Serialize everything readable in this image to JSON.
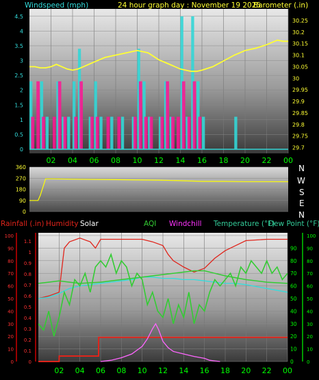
{
  "header": {
    "windspeed": "Windspeed (mph)",
    "title": "24 hour graph day : November 19 2025",
    "barometer": "Barometer (.in)"
  },
  "legend3": {
    "rainfall": "Rainfall (.in)",
    "humidity": "Humidity",
    "solar": "Solar",
    "aqi": "AQI",
    "windchill": "Windchill",
    "temperature": "Temperature (°F)",
    "dewpoint": "Dew Point (°F)"
  },
  "compass": [
    "N",
    "W",
    "S",
    "E",
    "N"
  ],
  "colors": {
    "wind": "#33d6d6",
    "gust": "#ff1493",
    "baro": "#ffff33",
    "dir": "#ffff00",
    "humidity": "#e0241b",
    "rain": "#e0241b",
    "aqi": "#33cc33",
    "temp": "#33dddd",
    "dew": "#33cc33",
    "solar": "#ff66ff",
    "axis_cyan": "#33dddd",
    "axis_yellow": "#ffff33",
    "axis_green": "#00ff00",
    "axis_red": "#ff3333"
  },
  "chart_data": [
    {
      "type": "line",
      "name": "wind_baro",
      "x_ticks": [
        "02",
        "04",
        "06",
        "08",
        "10",
        "12",
        "14",
        "16",
        "18",
        "20",
        "22",
        "00"
      ],
      "y_left_ticks": [
        "0",
        "0.5",
        "1",
        "1.5",
        "2",
        "2.5",
        "3",
        "3.5",
        "4",
        "4.5"
      ],
      "y_left_range": [
        0,
        4.75
      ],
      "y_right_ticks": [
        "29.7",
        "29.75",
        "29.8",
        "29.85",
        "29.9",
        "29.95",
        "30",
        "30.05",
        "30.1",
        "30.15",
        "30.2",
        "30.25"
      ],
      "y_right_range": [
        29.675,
        30.3
      ],
      "x_range": [
        0,
        24
      ],
      "series": [
        {
          "key": "barometer",
          "x": [
            0,
            0.5,
            1,
            1.5,
            2,
            2.5,
            3,
            3.5,
            4,
            4.5,
            5,
            6,
            7,
            8,
            9,
            10,
            11,
            12,
            13,
            14,
            14.5,
            15,
            15.5,
            16,
            17,
            18,
            19,
            20,
            21,
            22,
            23,
            23.5,
            24
          ],
          "values": [
            30.05,
            30.05,
            30.045,
            30.045,
            30.05,
            30.06,
            30.05,
            30.04,
            30.035,
            30.04,
            30.05,
            30.07,
            30.09,
            30.1,
            30.11,
            30.12,
            30.11,
            30.08,
            30.06,
            30.04,
            30.035,
            30.03,
            30.03,
            30.035,
            30.05,
            30.075,
            30.1,
            30.12,
            30.13,
            30.145,
            30.165,
            30.16,
            30.16
          ]
        },
        {
          "key": "wind",
          "x": [
            0,
            0.5,
            1,
            1.5,
            2,
            2.5,
            3,
            3.5,
            4,
            4.5,
            5,
            5.5,
            6,
            6.5,
            7,
            7.5,
            8,
            8.5,
            9,
            9.5,
            10,
            10.5,
            11,
            11.5,
            12,
            12.5,
            13,
            13.5,
            14,
            14.5,
            15,
            15.5,
            16,
            16.5,
            17,
            17.5,
            18,
            18.5,
            19,
            19.5,
            20,
            21,
            22,
            23,
            24
          ],
          "values": [
            2.3,
            0,
            2.3,
            1.1,
            0,
            2.3,
            1.1,
            1.1,
            2.3,
            3.4,
            0,
            1.1,
            2.3,
            1.1,
            0,
            1.1,
            0,
            1.1,
            0,
            1.1,
            3.4,
            2.3,
            1.1,
            0,
            1.1,
            2.3,
            1.1,
            0,
            4.5,
            1.1,
            4.5,
            2.3,
            1.1,
            0,
            0,
            0,
            0,
            0,
            1.1,
            0,
            0,
            0,
            0,
            0,
            0
          ]
        },
        {
          "key": "gust",
          "x": [
            0,
            0.5,
            1,
            1.5,
            2,
            2.5,
            3,
            3.5,
            4,
            4.5,
            5,
            5.5,
            6,
            6.5,
            7,
            7.5,
            8,
            8.5,
            9,
            9.5,
            10,
            10.5,
            11,
            11.5,
            12,
            12.5,
            13,
            13.5,
            14,
            14.5,
            15,
            15.5,
            16,
            16.5,
            17,
            17.5,
            18,
            18.5,
            19,
            20,
            21,
            22,
            23,
            24
          ],
          "values": [
            1.1,
            2.3,
            1.1,
            0,
            1.1,
            2.3,
            1.1,
            0,
            1.1,
            2.3,
            0,
            1.1,
            1.1,
            0,
            1.1,
            0,
            1.1,
            0,
            0,
            1.1,
            2.3,
            1.1,
            1.1,
            0,
            1.1,
            2.3,
            1.1,
            1.1,
            2.3,
            1.1,
            2.3,
            1.1,
            0,
            0,
            0,
            0,
            0,
            0,
            0,
            0,
            0,
            0,
            0,
            0
          ]
        }
      ]
    },
    {
      "type": "line",
      "name": "wind_direction",
      "y_ticks": [
        "0",
        "90",
        "180",
        "270",
        "360"
      ],
      "y_range": [
        0,
        360
      ],
      "x_range": [
        0,
        24
      ],
      "series": [
        {
          "key": "direction",
          "x": [
            0,
            0.8,
            1,
            1.5,
            2,
            4,
            8,
            12,
            14,
            16,
            18,
            20,
            22,
            24
          ],
          "values": [
            90,
            90,
            130,
            265,
            265,
            262,
            258,
            254,
            250,
            244,
            244,
            242,
            242,
            242
          ]
        }
      ]
    },
    {
      "type": "line",
      "name": "weather",
      "y_left_rain_ticks": [
        "0",
        "0.1",
        "0.2",
        "0.3",
        "0.4",
        "0.5",
        "0.6",
        "0.7",
        "0.8",
        "0.9",
        "1",
        "1.1"
      ],
      "y_left_hum_ticks": [
        "0",
        "10",
        "20",
        "30",
        "40",
        "50",
        "60",
        "70",
        "80",
        "90",
        "100"
      ],
      "y_right_temp_ticks": [
        "0",
        "10",
        "20",
        "30",
        "40",
        "50",
        "60",
        "70",
        "80",
        "90"
      ],
      "y_right_far_ticks": [
        "0",
        "10",
        "20",
        "30",
        "40",
        "50",
        "60",
        "70",
        "80",
        "90",
        "100"
      ],
      "x_range": [
        0,
        24
      ],
      "series": [
        {
          "key": "humidity",
          "range": [
            0,
            100
          ],
          "x": [
            0,
            1,
            2,
            2.5,
            3,
            4,
            5,
            5.5,
            6,
            8,
            10,
            11,
            12,
            12.5,
            13,
            14,
            15,
            16,
            17,
            18,
            19,
            20,
            22,
            24
          ],
          "values": [
            50,
            52,
            55,
            90,
            95,
            98,
            95,
            90,
            97,
            97,
            97,
            95,
            92,
            85,
            80,
            75,
            71,
            74,
            82,
            88,
            92,
            96,
            97,
            97
          ]
        },
        {
          "key": "temperature",
          "range": [
            0,
            100
          ],
          "x": [
            0,
            1,
            2,
            3,
            4,
            5,
            6,
            7,
            8,
            9,
            10,
            11,
            12,
            13,
            14,
            15,
            16,
            17,
            18,
            19,
            20,
            22,
            24
          ],
          "values": [
            50,
            51,
            54,
            58,
            60,
            61,
            62,
            63,
            64,
            65,
            67,
            67,
            66,
            66,
            65,
            65,
            64,
            63,
            62,
            62,
            61,
            58,
            55
          ]
        },
        {
          "key": "dewpoint",
          "range": [
            0,
            100
          ],
          "x": [
            0,
            1,
            2,
            3,
            4,
            6,
            8,
            10,
            12,
            14,
            15,
            16,
            17,
            18,
            20,
            22,
            24
          ],
          "values": [
            62,
            63,
            64,
            63,
            62,
            63,
            65,
            67,
            69,
            71,
            72,
            72,
            70,
            68,
            65,
            63,
            62
          ]
        },
        {
          "key": "aqi",
          "range": [
            0,
            100
          ],
          "x": [
            0,
            0.5,
            1,
            1.5,
            2,
            2.5,
            3,
            3.5,
            4,
            4.5,
            5,
            5.5,
            6,
            6.5,
            7,
            7.5,
            8,
            8.5,
            9,
            9.5,
            10,
            10.5,
            11,
            11.5,
            12,
            12.5,
            13,
            13.5,
            14,
            14.5,
            15,
            15.5,
            16,
            16.5,
            17,
            17.5,
            18,
            18.5,
            19,
            19.5,
            20,
            20.5,
            21,
            21.5,
            22,
            22.5,
            23,
            23.5,
            24
          ],
          "values": [
            30,
            25,
            40,
            20,
            35,
            55,
            45,
            65,
            60,
            70,
            55,
            75,
            80,
            75,
            85,
            70,
            80,
            75,
            60,
            70,
            65,
            45,
            55,
            40,
            35,
            50,
            30,
            45,
            35,
            55,
            30,
            45,
            40,
            55,
            65,
            60,
            65,
            70,
            60,
            75,
            70,
            80,
            75,
            70,
            80,
            70,
            75,
            65,
            70
          ]
        },
        {
          "key": "rainfall",
          "range": [
            0,
            1.15
          ],
          "x": [
            0,
            2,
            2.01,
            5.8,
            5.81,
            24
          ],
          "values": [
            0,
            0,
            0.05,
            0.05,
            0.22,
            0.22
          ]
        },
        {
          "key": "solar",
          "range": [
            0,
            1000
          ],
          "x": [
            6,
            7,
            8,
            9,
            10,
            10.5,
            11,
            11.3,
            11.6,
            12,
            12.5,
            13,
            14,
            15,
            16,
            16.5,
            17,
            17.5
          ],
          "values": [
            0,
            10,
            30,
            60,
            120,
            180,
            260,
            300,
            250,
            160,
            110,
            80,
            60,
            40,
            25,
            10,
            5,
            0
          ]
        }
      ]
    }
  ]
}
